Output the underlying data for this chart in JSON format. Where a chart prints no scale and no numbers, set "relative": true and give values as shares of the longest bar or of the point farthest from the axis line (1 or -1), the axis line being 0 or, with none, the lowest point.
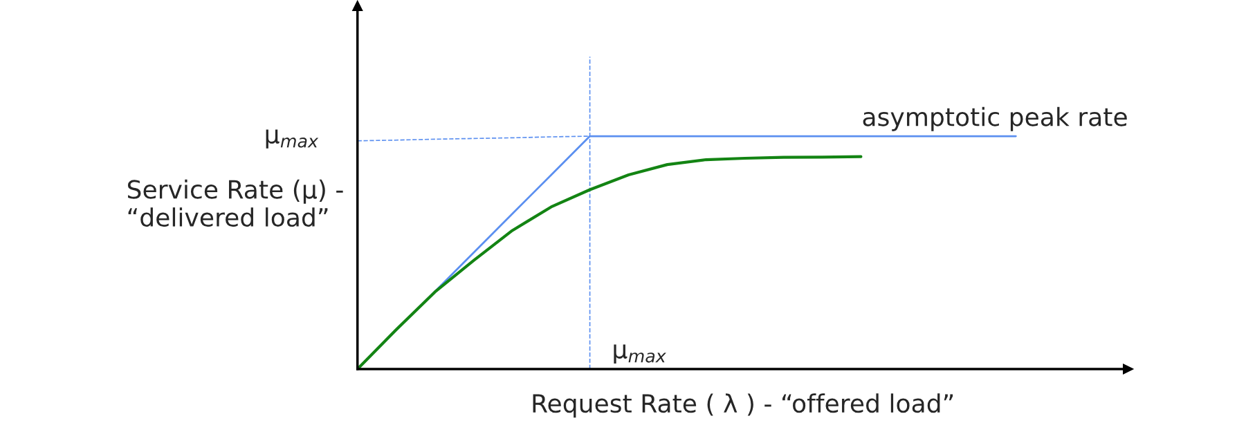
{
  "chart_data": {
    "type": "line",
    "relative": true,
    "xlabel": "Request Rate ( λ ) - “offered load”",
    "ylabel": "Service Rate (μ) -\n“delivered load”",
    "categories": [
      null,
      null,
      null,
      null,
      null,
      null,
      null,
      null,
      null,
      null,
      null,
      null,
      null,
      null,
      null,
      null,
      null,
      null,
      null,
      null
    ],
    "series": [
      {
        "color": "#5b8ff0",
        "line_style": "solid",
        "values": [
          0,
          0.167,
          0.333,
          0.5,
          0.667,
          0.833,
          1,
          1,
          1,
          1,
          1,
          1,
          1,
          1,
          1,
          1,
          1,
          1,
          null,
          null
        ]
      },
      {
        "color": "#5b8ff0",
        "line_style": "dashed",
        "values": [
          0.98,
          0.983,
          0.987,
          0.99,
          0.993,
          0.997,
          1,
          null,
          null,
          null,
          null,
          null,
          null,
          null,
          null,
          null,
          null,
          null,
          null,
          null
        ]
      },
      {
        "color": "#138413",
        "line_style": "solid",
        "values": [
          0,
          0.169,
          0.331,
          0.466,
          0.595,
          0.696,
          0.77,
          0.834,
          0.878,
          0.899,
          0.905,
          0.909,
          0.91,
          0.912,
          null,
          null,
          null,
          null,
          null,
          null
        ]
      }
    ],
    "annotations": [
      "μ$_{max}$",
      "μ$_{max}$",
      "asymptotic peak rate"
    ]
  }
}
